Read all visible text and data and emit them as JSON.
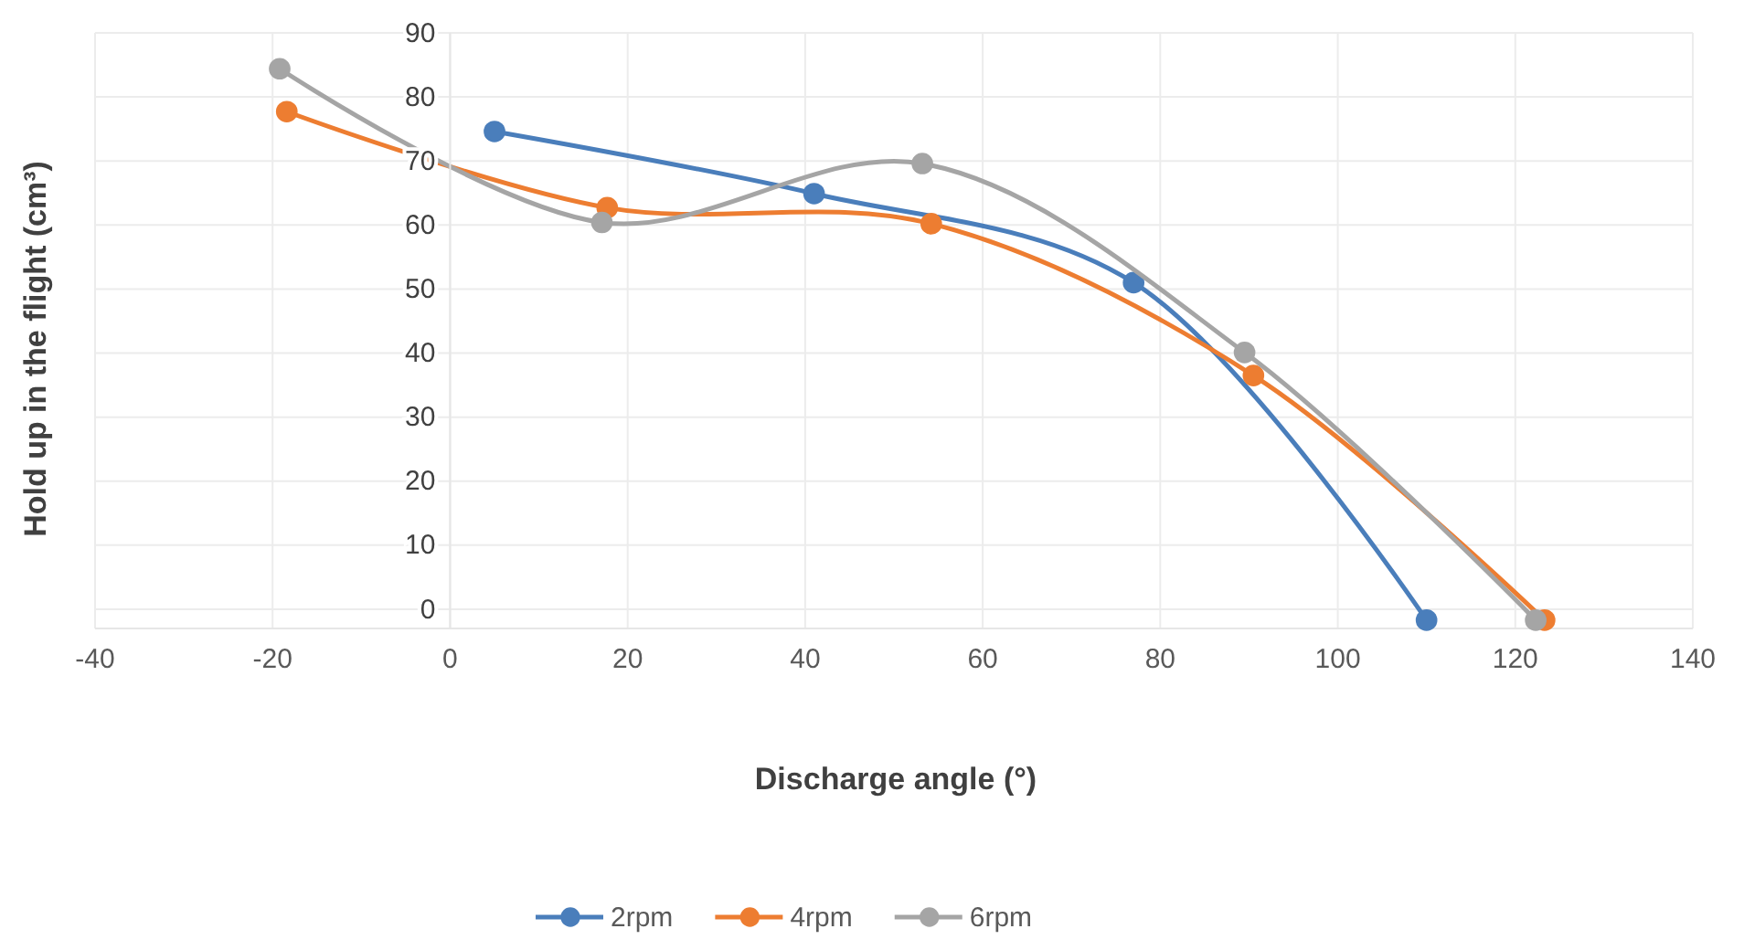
{
  "chart_data": {
    "type": "line",
    "xlabel": "Discharge angle (°)",
    "ylabel": "Hold up in the flight (cm³)",
    "xlim": [
      -40,
      140
    ],
    "xticks": [
      -40,
      -20,
      0,
      20,
      40,
      60,
      80,
      100,
      120,
      140
    ],
    "ylim": [
      -3,
      90
    ],
    "yticks": [
      0,
      10,
      20,
      30,
      40,
      50,
      60,
      70,
      80,
      90
    ],
    "grid": true,
    "legend": "bottom",
    "marker": "circle",
    "line_style": "solid",
    "series": [
      {
        "name": "2rpm",
        "color": "#4a7ebb",
        "x": [
          5,
          41,
          77,
          110
        ],
        "values": [
          74.6,
          64.9,
          51,
          -1.7
        ]
      },
      {
        "name": "4rpm",
        "color": "#ed7d31",
        "x": [
          -18.4,
          17.7,
          54.2,
          90.5,
          123.3
        ],
        "values": [
          77.7,
          62.7,
          60.2,
          36.5,
          -1.7
        ]
      },
      {
        "name": "6rpm",
        "color": "#a5a5a5",
        "x": [
          -19.2,
          17.1,
          53.2,
          89.5,
          122.3
        ],
        "values": [
          84.4,
          60.4,
          69.6,
          40.1,
          -1.7
        ]
      }
    ]
  }
}
